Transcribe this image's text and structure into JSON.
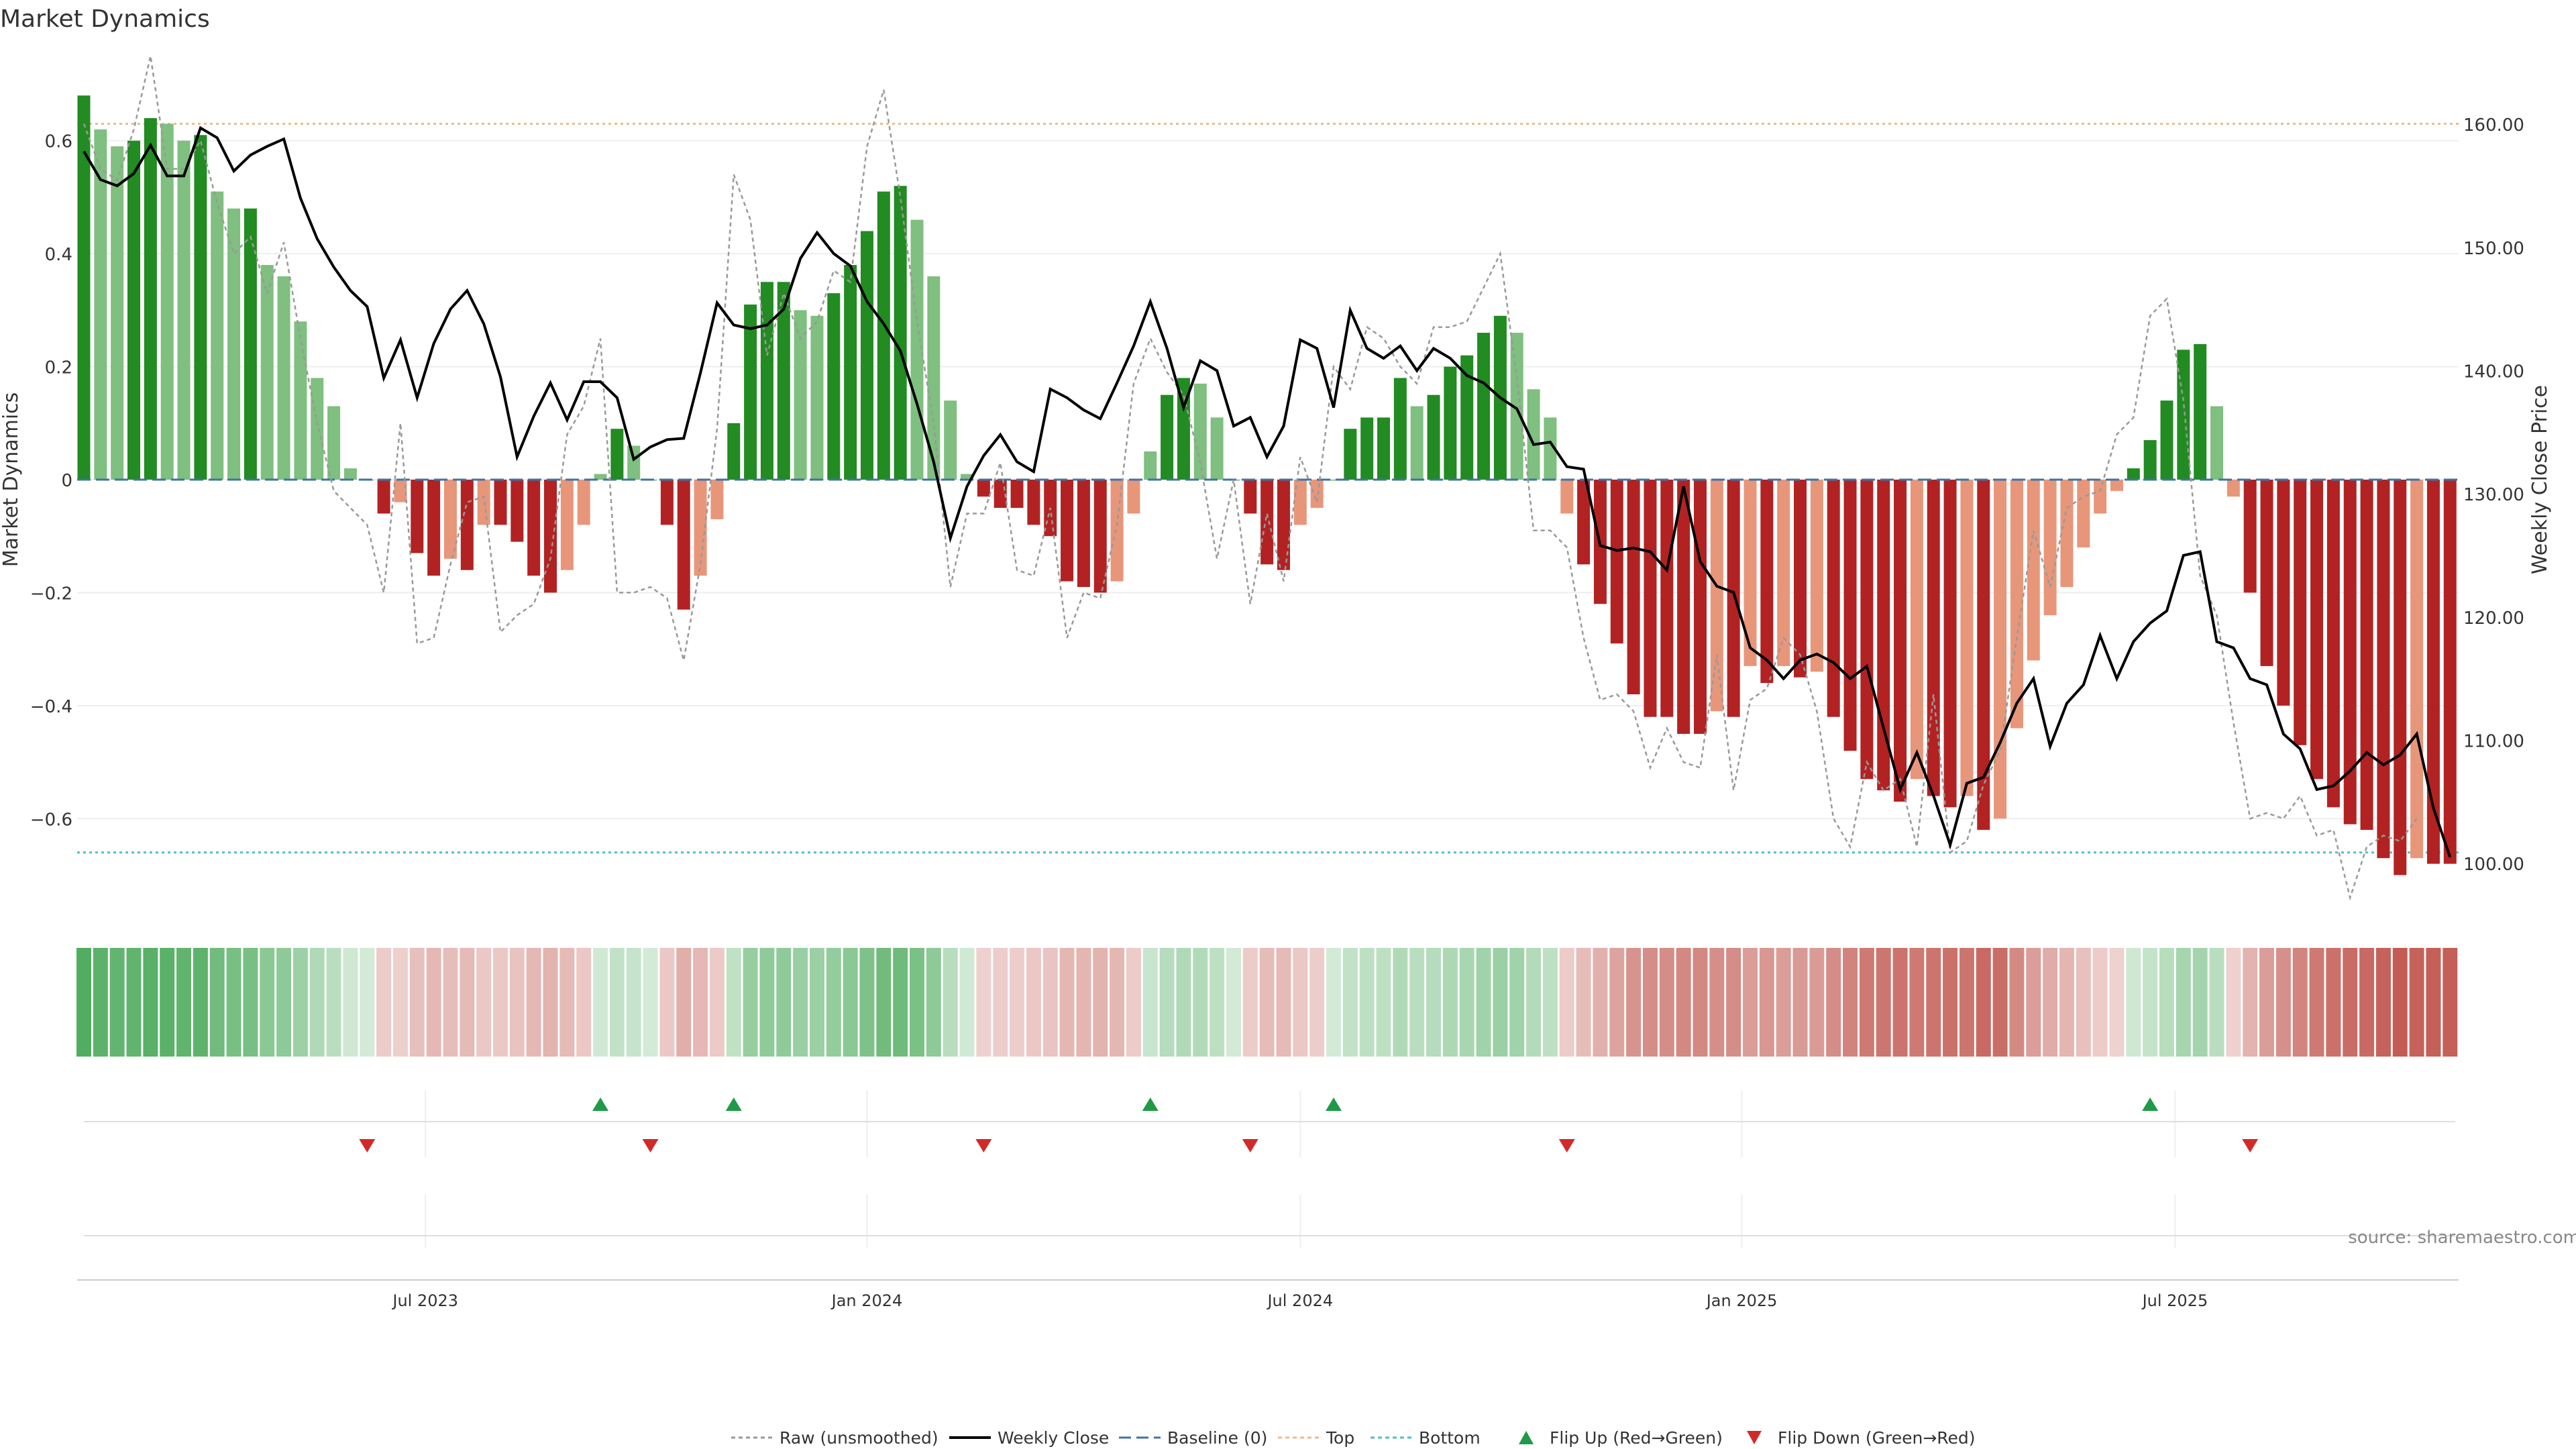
{
  "chart_data": {
    "type": "bar",
    "title": "Market Dynamics",
    "ylabel_left": "Market Dynamics",
    "ylabel_right": "Weekly Close Price",
    "source": "source: sharemaestro.com",
    "ylim_left": [
      -0.76,
      0.76
    ],
    "ylim_right": [
      96.3,
      166.0
    ],
    "yticks_left": [
      {
        "value": 0.6,
        "label": "0.6"
      },
      {
        "value": 0.4,
        "label": "0.4"
      },
      {
        "value": 0.2,
        "label": "0.2"
      },
      {
        "value": 0,
        "label": "0"
      },
      {
        "value": -0.2,
        "label": "−0.2"
      },
      {
        "value": -0.4,
        "label": "−0.4"
      },
      {
        "value": -0.6,
        "label": "−0.6"
      }
    ],
    "yticks_right": [
      {
        "value": 160,
        "label": "160.00"
      },
      {
        "value": 150,
        "label": "150.00"
      },
      {
        "value": 140,
        "label": "140.00"
      },
      {
        "value": 130,
        "label": "130.00"
      },
      {
        "value": 120,
        "label": "120.00"
      },
      {
        "value": 110,
        "label": "110.00"
      },
      {
        "value": 100,
        "label": "100.00"
      }
    ],
    "x_tick_labels": [
      {
        "index": 20.5,
        "label": "Jul 2023"
      },
      {
        "index": 47,
        "label": "Jan 2024"
      },
      {
        "index": 73,
        "label": "Jul 2024"
      },
      {
        "index": 99.5,
        "label": "Jan 2025"
      },
      {
        "index": 125.5,
        "label": "Jul 2025"
      }
    ],
    "top_line": 0.63,
    "bottom_line": -0.66,
    "baseline": 0,
    "values": [
      0.68,
      0.62,
      0.59,
      0.6,
      0.64,
      0.63,
      0.6,
      0.61,
      0.51,
      0.48,
      0.48,
      0.38,
      0.36,
      0.28,
      0.18,
      0.13,
      0.02,
      0.0,
      -0.06,
      -0.04,
      -0.13,
      -0.17,
      -0.14,
      -0.16,
      -0.08,
      -0.08,
      -0.11,
      -0.17,
      -0.2,
      -0.16,
      -0.08,
      0.01,
      0.09,
      0.06,
      0.0,
      -0.08,
      -0.23,
      -0.17,
      -0.07,
      0.1,
      0.31,
      0.35,
      0.35,
      0.3,
      0.29,
      0.33,
      0.38,
      0.44,
      0.51,
      0.52,
      0.46,
      0.36,
      0.14,
      0.01,
      -0.03,
      -0.05,
      -0.05,
      -0.08,
      -0.1,
      -0.18,
      -0.19,
      -0.2,
      -0.18,
      -0.06,
      0.05,
      0.15,
      0.18,
      0.17,
      0.11,
      0.0,
      -0.06,
      -0.15,
      -0.16,
      -0.08,
      -0.05,
      0.0,
      0.09,
      0.11,
      0.11,
      0.18,
      0.13,
      0.15,
      0.2,
      0.22,
      0.26,
      0.29,
      0.26,
      0.16,
      0.11,
      -0.06,
      -0.15,
      -0.22,
      -0.29,
      -0.38,
      -0.42,
      -0.42,
      -0.45,
      -0.45,
      -0.41,
      -0.42,
      -0.33,
      -0.36,
      -0.33,
      -0.35,
      -0.34,
      -0.42,
      -0.48,
      -0.53,
      -0.55,
      -0.57,
      -0.53,
      -0.56,
      -0.58,
      -0.56,
      -0.62,
      -0.6,
      -0.44,
      -0.32,
      -0.24,
      -0.19,
      -0.12,
      -0.06,
      -0.02,
      0.02,
      0.07,
      0.14,
      0.23,
      0.24,
      0.13,
      -0.03,
      -0.2,
      -0.33,
      -0.4,
      -0.47,
      -0.53,
      -0.58,
      -0.61,
      -0.62,
      -0.67,
      -0.7,
      -0.67,
      -0.68,
      -0.68
    ],
    "raw_values": [
      0.63,
      0.55,
      0.53,
      0.62,
      0.75,
      0.55,
      0.55,
      0.6,
      0.49,
      0.4,
      0.43,
      0.33,
      0.42,
      0.25,
      0.1,
      -0.02,
      -0.05,
      -0.08,
      -0.2,
      0.1,
      -0.29,
      -0.28,
      -0.15,
      -0.04,
      -0.03,
      -0.27,
      -0.24,
      -0.22,
      -0.14,
      0.08,
      0.13,
      0.25,
      -0.2,
      -0.2,
      -0.19,
      -0.21,
      -0.32,
      -0.15,
      0.09,
      0.54,
      0.46,
      0.22,
      0.33,
      0.25,
      0.28,
      0.37,
      0.35,
      0.59,
      0.69,
      0.5,
      0.28,
      0.1,
      -0.19,
      -0.06,
      -0.06,
      0.03,
      -0.16,
      -0.17,
      -0.05,
      -0.28,
      -0.2,
      -0.21,
      -0.08,
      0.17,
      0.25,
      0.19,
      0.15,
      0.03,
      -0.14,
      0.0,
      -0.22,
      -0.06,
      -0.18,
      0.04,
      -0.04,
      0.2,
      0.16,
      0.27,
      0.25,
      0.2,
      0.17,
      0.27,
      0.27,
      0.28,
      0.34,
      0.4,
      0.18,
      -0.09,
      -0.09,
      -0.12,
      -0.28,
      -0.39,
      -0.38,
      -0.41,
      -0.51,
      -0.44,
      -0.5,
      -0.51,
      -0.31,
      -0.55,
      -0.39,
      -0.37,
      -0.28,
      -0.31,
      -0.41,
      -0.6,
      -0.65,
      -0.5,
      -0.55,
      -0.53,
      -0.65,
      -0.38,
      -0.66,
      -0.64,
      -0.54,
      -0.48,
      -0.28,
      -0.09,
      -0.19,
      -0.05,
      -0.03,
      -0.02,
      0.08,
      0.11,
      0.29,
      0.32,
      0.14,
      -0.17,
      -0.24,
      -0.43,
      -0.6,
      -0.59,
      -0.6,
      -0.56,
      -0.63,
      -0.62,
      -0.74,
      -0.65,
      -0.63,
      -0.64,
      -0.6
    ],
    "weekly_close": [
      157.8,
      155.5,
      155.0,
      156.0,
      158.3,
      155.8,
      155.8,
      159.7,
      158.9,
      156.2,
      157.5,
      158.2,
      158.8,
      154.0,
      150.7,
      148.4,
      146.5,
      145.2,
      139.4,
      142.5,
      137.8,
      142.2,
      145.0,
      146.5,
      143.8,
      139.5,
      133.0,
      136.3,
      139.0,
      136.0,
      139.1,
      139.1,
      137.8,
      132.8,
      133.8,
      134.4,
      134.5,
      139.8,
      145.5,
      143.7,
      143.4,
      143.7,
      145.0,
      149.1,
      151.2,
      149.5,
      148.5,
      145.6,
      143.8,
      141.6,
      137.3,
      132.6,
      126.4,
      130.6,
      133.1,
      134.8,
      132.6,
      131.8,
      138.5,
      137.8,
      136.8,
      136.1,
      139.0,
      142.0,
      145.6,
      141.8,
      137.0,
      140.8,
      140.0,
      135.5,
      136.2,
      133.0,
      135.5,
      142.5,
      141.8,
      137.0,
      144.9,
      141.8,
      141.0,
      142.0,
      140.0,
      141.8,
      141.0,
      139.6,
      139.0,
      137.8,
      136.9,
      134.0,
      134.2,
      132.2,
      132.0,
      125.8,
      125.4,
      125.6,
      125.3,
      123.8,
      130.6,
      124.5,
      122.5,
      122.0,
      117.5,
      116.5,
      115.0,
      116.5,
      117.0,
      116.3,
      115.0,
      116.0,
      111.0,
      106.0,
      109.0,
      105.5,
      101.5,
      106.5,
      107.0,
      109.8,
      113.0,
      115.0,
      109.5,
      113.0,
      114.5,
      118.5,
      115.0,
      118.0,
      119.5,
      120.5,
      125.0,
      125.3,
      118.0,
      117.5,
      115.0,
      114.5,
      110.5,
      109.3,
      106.0,
      106.3,
      107.5,
      109.0,
      108.0,
      108.8,
      110.5,
      104.5,
      100.5
    ],
    "flip_up_indices": [
      31,
      39,
      64,
      75,
      124
    ],
    "flip_down_indices": [
      17,
      34,
      54,
      70,
      89,
      130
    ],
    "legend": [
      {
        "label": "Raw (unsmoothed)",
        "style": "dotted",
        "color": "#999999"
      },
      {
        "label": "Weekly Close",
        "style": "solid",
        "color": "#000000"
      },
      {
        "label": "Baseline (0)",
        "style": "dashed",
        "color": "#3f73a8"
      },
      {
        "label": "Top",
        "style": "dotted",
        "color": "#f0b98d"
      },
      {
        "label": "Bottom",
        "style": "dotted",
        "color": "#4ec0c7"
      },
      {
        "label": "Flip Up (Red→Green)",
        "style": "triangle-up",
        "color": "#1f9a46"
      },
      {
        "label": "Flip Down (Green→Red)",
        "style": "triangle-down",
        "color": "#d12a2a"
      }
    ],
    "colors": {
      "strong_green": "#228b22",
      "light_green": "#7fbf7f",
      "strong_red": "#b22222",
      "light_red": "#e8967a",
      "raw": "#999999",
      "close": "#000000",
      "baseline": "#3f73a8",
      "top": "#f0b98d",
      "bottom": "#4ec0c7",
      "flip_up": "#1f9a46",
      "flip_down": "#d12a2a",
      "heat_green": "#4aaa5a",
      "heat_red": "#c25a52"
    }
  }
}
